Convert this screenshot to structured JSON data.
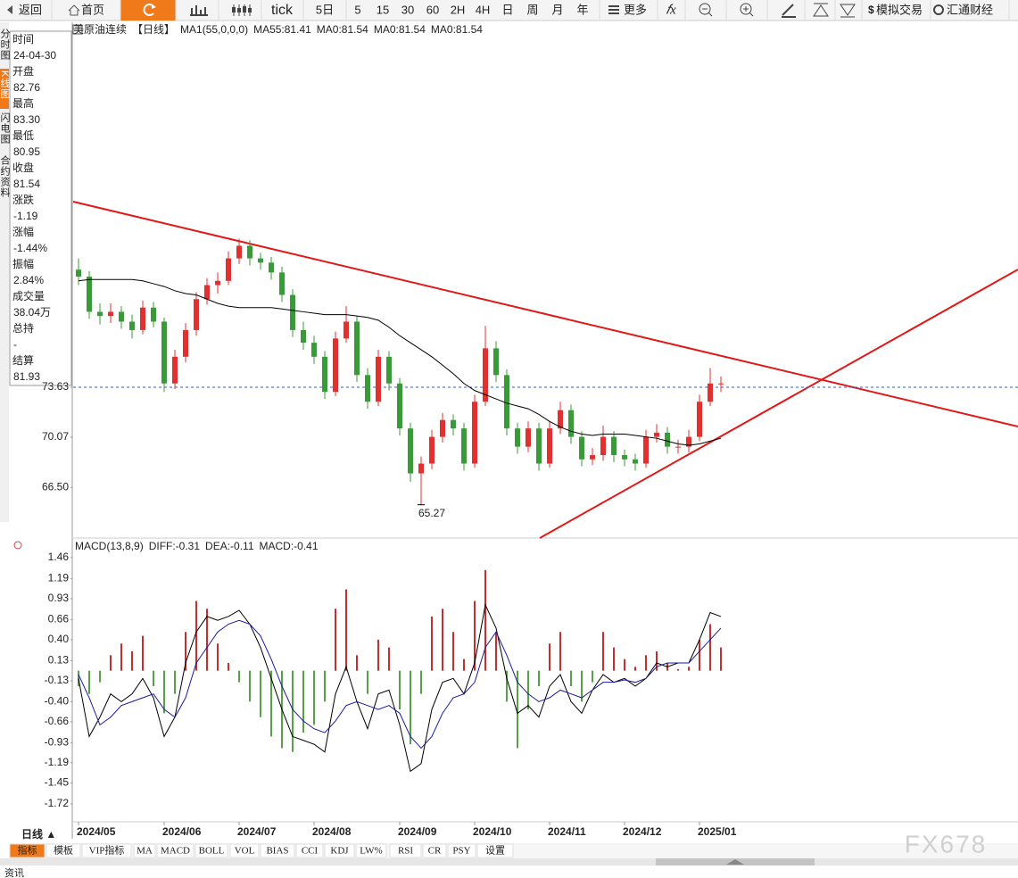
{
  "toolbar": [
    "返回",
    "首页",
    "tick",
    "5日",
    "5",
    "15",
    "30",
    "60",
    "2H",
    "4H",
    "日",
    "周",
    "月",
    "年",
    "更多",
    "模拟交易",
    "汇通财经"
  ],
  "side_tabs": [
    "分时图",
    "K线图",
    "闪电图",
    "合约资料"
  ],
  "info_panel": [
    {
      "label": "时间",
      "value": "24-04-30",
      "color": "#222"
    },
    {
      "label": "开盘",
      "value": "82.76",
      "color": "#e02020"
    },
    {
      "label": "最高",
      "value": "83.30",
      "color": "#e02020"
    },
    {
      "label": "最低",
      "value": "80.95",
      "color": "#2a9a2a"
    },
    {
      "label": "收盘",
      "value": "81.54",
      "color": "#2a9a2a"
    },
    {
      "label": "涨跌",
      "value": "-1.19",
      "color": "#2a9a2a"
    },
    {
      "label": "涨幅",
      "value": "-1.44%",
      "color": "#2a9a2a"
    },
    {
      "label": "振幅",
      "value": "2.84%",
      "color": "#222"
    },
    {
      "label": "成交量",
      "value": "38.04万",
      "color": "#222"
    },
    {
      "label": "总持",
      "value": "-",
      "color": "#222"
    },
    {
      "label": "结算",
      "value": "81.93",
      "color": "#222"
    }
  ],
  "chart_data": [
    {
      "type": "candlestick",
      "legend": [
        {
          "text": "美原油连续",
          "color": "#000"
        },
        {
          "text": "【日线】",
          "color": "#f07800"
        },
        {
          "text": "MA1(55,0,0,0)",
          "color": "#000"
        },
        {
          "text": "MA55:81.41",
          "color": "#000"
        },
        {
          "text": "MA0:81.54",
          "color": "#1a1aa0"
        },
        {
          "text": "MA0:81.54",
          "color": "#e020e0"
        },
        {
          "text": "MA0:81.54",
          "color": "#f09020"
        }
      ],
      "ylim": [
        62.9,
        99.6
      ],
      "yticks": [
        {
          "value": 66.5,
          "label": "66.50"
        },
        70.07,
        73.63
      ],
      "xticks": [
        {
          "value": 0,
          "label": "2024/05"
        },
        {
          "value": 8,
          "label": "2024/06"
        },
        {
          "value": 15,
          "label": "2024/07"
        },
        {
          "value": 22,
          "label": "2024/08"
        },
        {
          "value": 30,
          "label": "2024/09"
        },
        {
          "value": 37,
          "label": "2024/10"
        },
        {
          "value": 44,
          "label": "2024/11"
        },
        {
          "value": 51,
          "label": "2024/12"
        },
        {
          "value": 58,
          "label": "2025/01"
        }
      ],
      "up_color": "#e03030",
      "down_color": "#3a9a3a",
      "ma_color": "#000",
      "low_label_index": 32,
      "candles": [
        [
          82.0,
          82.8,
          80.9,
          81.5
        ],
        [
          81.5,
          81.9,
          78.5,
          79.0
        ],
        [
          79.0,
          79.6,
          78.1,
          78.7
        ],
        [
          78.7,
          79.6,
          78.2,
          79.0
        ],
        [
          79.0,
          79.4,
          77.8,
          78.3
        ],
        [
          78.3,
          78.8,
          77.1,
          77.7
        ],
        [
          77.7,
          79.8,
          77.4,
          79.3
        ],
        [
          79.3,
          79.7,
          77.9,
          78.3
        ],
        [
          78.3,
          78.6,
          73.3,
          73.9
        ],
        [
          73.9,
          76.3,
          73.5,
          75.8
        ],
        [
          75.8,
          78.2,
          75.4,
          77.7
        ],
        [
          77.7,
          80.4,
          77.3,
          79.9
        ],
        [
          79.9,
          81.4,
          79.5,
          80.9
        ],
        [
          80.9,
          81.8,
          80.3,
          81.2
        ],
        [
          81.2,
          83.3,
          80.9,
          82.8
        ],
        [
          82.8,
          84.2,
          82.4,
          83.7
        ],
        [
          83.7,
          84.1,
          82.3,
          82.8
        ],
        [
          82.8,
          83.2,
          82.0,
          82.5
        ],
        [
          82.5,
          82.9,
          81.3,
          81.8
        ],
        [
          81.8,
          82.2,
          79.7,
          80.2
        ],
        [
          80.2,
          80.6,
          77.2,
          77.7
        ],
        [
          77.7,
          78.3,
          76.3,
          76.8
        ],
        [
          76.8,
          77.3,
          75.3,
          75.8
        ],
        [
          75.8,
          76.2,
          72.8,
          73.3
        ],
        [
          73.3,
          77.6,
          73.0,
          77.1
        ],
        [
          77.1,
          79.4,
          76.8,
          78.3
        ],
        [
          78.3,
          78.7,
          74.0,
          74.5
        ],
        [
          74.5,
          75.0,
          72.1,
          72.6
        ],
        [
          72.6,
          76.3,
          72.3,
          75.8
        ],
        [
          75.8,
          76.2,
          73.4,
          73.9
        ],
        [
          73.9,
          74.3,
          70.2,
          70.7
        ],
        [
          70.7,
          71.1,
          66.9,
          67.5
        ],
        [
          67.5,
          68.7,
          65.27,
          68.2
        ],
        [
          68.2,
          70.6,
          67.8,
          70.1
        ],
        [
          70.1,
          71.8,
          69.7,
          71.3
        ],
        [
          71.3,
          71.7,
          70.2,
          70.7
        ],
        [
          70.7,
          71.1,
          67.7,
          68.2
        ],
        [
          68.2,
          73.1,
          67.9,
          72.6
        ],
        [
          72.6,
          78.0,
          72.3,
          76.4
        ],
        [
          76.4,
          76.9,
          74.0,
          74.5
        ],
        [
          74.5,
          74.9,
          70.2,
          70.7
        ],
        [
          70.7,
          71.1,
          68.9,
          69.4
        ],
        [
          69.4,
          71.2,
          69.0,
          70.7
        ],
        [
          70.7,
          71.1,
          67.7,
          68.2
        ],
        [
          68.2,
          71.2,
          67.9,
          70.7
        ],
        [
          70.7,
          72.6,
          70.3,
          72.0
        ],
        [
          72.0,
          72.4,
          69.6,
          70.1
        ],
        [
          70.1,
          70.5,
          68.0,
          68.5
        ],
        [
          68.5,
          69.3,
          68.1,
          68.8
        ],
        [
          68.8,
          70.9,
          68.4,
          70.1
        ],
        [
          70.1,
          70.5,
          68.3,
          68.8
        ],
        [
          68.8,
          69.2,
          68.0,
          68.5
        ],
        [
          68.5,
          68.9,
          67.7,
          68.2
        ],
        [
          68.2,
          70.6,
          67.9,
          70.1
        ],
        [
          70.1,
          71.0,
          69.7,
          70.4
        ],
        [
          70.4,
          70.8,
          68.9,
          69.4
        ],
        [
          69.4,
          69.9,
          68.9,
          69.4
        ],
        [
          69.4,
          70.6,
          69.0,
          70.1
        ],
        [
          70.1,
          73.1,
          69.8,
          72.6
        ],
        [
          72.6,
          75.0,
          72.3,
          73.9
        ],
        [
          73.9,
          74.4,
          73.3,
          73.9
        ]
      ],
      "ma": [
        81.2,
        81.3,
        81.3,
        81.3,
        81.3,
        81.3,
        81.2,
        81.0,
        80.8,
        80.5,
        80.3,
        80.2,
        79.9,
        79.6,
        79.4,
        79.3,
        79.3,
        79.3,
        79.3,
        79.2,
        79.1,
        79.0,
        78.9,
        78.8,
        78.8,
        78.8,
        78.7,
        78.6,
        78.4,
        77.9,
        77.3,
        76.8,
        76.3,
        75.8,
        75.2,
        74.6,
        73.9,
        73.4,
        73.1,
        72.8,
        72.5,
        72.3,
        72.1,
        71.7,
        71.2,
        70.8,
        70.5,
        70.3,
        70.2,
        70.3,
        70.3,
        70.3,
        70.2,
        70.1,
        70.0,
        69.8,
        69.6,
        69.5,
        69.6,
        69.8,
        70.0
      ]
    },
    {
      "type": "macd",
      "legend": [
        {
          "text": "MACD(13,8,9)",
          "color": "#000"
        },
        {
          "text": "DIFF:-0.31",
          "color": "#000"
        },
        {
          "text": "DEA:-0.11",
          "color": "#1a1aa0"
        },
        {
          "text": "MACD:-0.41",
          "color": "#e020e0"
        }
      ],
      "ylim": [
        -1.94,
        1.69
      ],
      "yticks": [
        1.46,
        1.19,
        0.93,
        0.66,
        {
          "value": 0.4,
          "label": "0.40"
        },
        0.13,
        -0.13,
        {
          "value": -0.4,
          "label": "-0.40"
        },
        -0.66,
        -0.93,
        -1.19,
        -1.45,
        -1.72
      ],
      "pos_color": "#c03030",
      "neg_color": "#5aa04a",
      "diff_color": "#000",
      "dea_color": "#1a1aa0",
      "macd": [
        -0.2,
        -0.3,
        -0.15,
        0.2,
        0.35,
        0.25,
        0.45,
        -0.2,
        -0.55,
        -0.3,
        0.5,
        0.9,
        0.8,
        0.35,
        0.1,
        -0.15,
        -0.4,
        -0.6,
        -0.85,
        -1.0,
        -1.05,
        -0.8,
        -0.7,
        -0.4,
        0.8,
        1.05,
        0.2,
        -0.3,
        0.4,
        0.3,
        -0.5,
        -0.95,
        -0.3,
        0.7,
        0.8,
        0.5,
        0.15,
        0.9,
        1.3,
        0.5,
        -0.4,
        -1.0,
        -0.5,
        -0.2,
        0.35,
        0.5,
        -0.2,
        -0.4,
        -0.15,
        0.5,
        0.3,
        0.15,
        0.05,
        0.2,
        0.25,
        0.1,
        0.02,
        0.05,
        0.4,
        0.6,
        0.3
      ],
      "diff": [
        -0.1,
        -0.85,
        -0.6,
        -0.3,
        -0.4,
        -0.3,
        -0.1,
        -0.35,
        -0.85,
        -0.6,
        0.1,
        0.5,
        0.7,
        0.65,
        0.7,
        0.78,
        0.6,
        0.3,
        -0.1,
        -0.5,
        -0.85,
        -0.9,
        -0.95,
        -1.05,
        -0.3,
        0.05,
        -0.4,
        -0.75,
        -0.3,
        -0.25,
        -0.7,
        -1.3,
        -1.2,
        -0.5,
        -0.15,
        -0.1,
        -0.3,
        0.1,
        0.85,
        0.55,
        -0.1,
        -0.55,
        -0.45,
        -0.6,
        -0.2,
        -0.05,
        -0.4,
        -0.55,
        -0.25,
        -0.05,
        -0.15,
        -0.1,
        -0.2,
        -0.1,
        0.1,
        0.05,
        0.1,
        0.1,
        0.4,
        0.75,
        0.7
      ],
      "dea": [
        -0.05,
        -0.35,
        -0.7,
        -0.6,
        -0.45,
        -0.4,
        -0.35,
        -0.3,
        -0.5,
        -0.6,
        -0.35,
        0.1,
        0.3,
        0.5,
        0.6,
        0.65,
        0.6,
        0.45,
        0.15,
        -0.2,
        -0.5,
        -0.65,
        -0.75,
        -0.8,
        -0.65,
        -0.45,
        -0.4,
        -0.45,
        -0.5,
        -0.45,
        -0.55,
        -0.85,
        -1.0,
        -0.85,
        -0.55,
        -0.35,
        -0.3,
        -0.15,
        0.3,
        0.5,
        0.2,
        -0.15,
        -0.3,
        -0.4,
        -0.35,
        -0.25,
        -0.3,
        -0.35,
        -0.25,
        -0.15,
        -0.15,
        -0.12,
        -0.15,
        -0.1,
        0.05,
        0.1,
        0.1,
        0.1,
        0.25,
        0.4,
        0.55
      ]
    }
  ],
  "bottom_bar": {
    "period": "日线 ▲",
    "tabs": [
      "指标",
      "模板",
      "VIP指标",
      "MA",
      "MACD",
      "BOLL",
      "VOL",
      "BIAS",
      "CCI",
      "KDJ",
      "LW%",
      "RSI",
      "CR",
      "PSY",
      "设置"
    ]
  },
  "watermark": "FX678",
  "footer": "资讯"
}
